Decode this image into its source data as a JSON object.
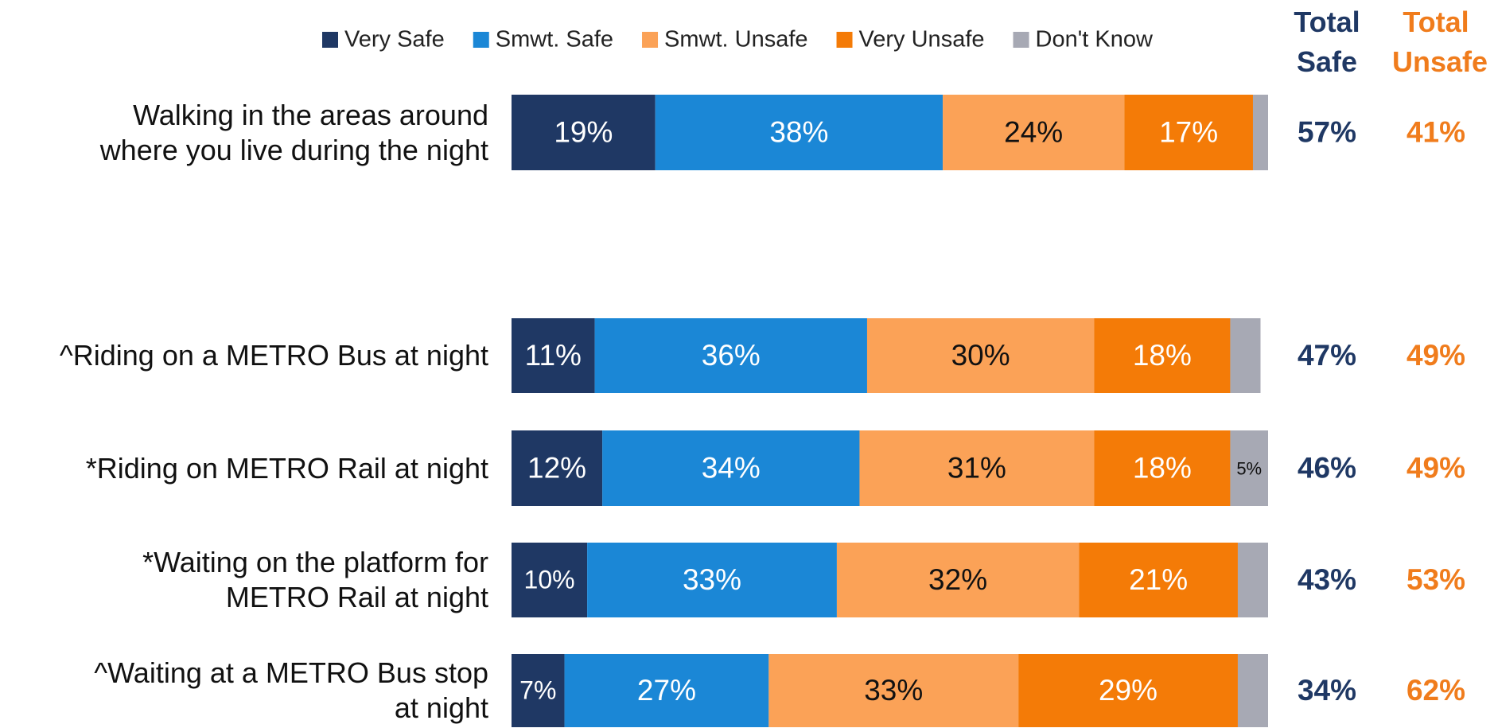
{
  "chart_data": {
    "type": "stacked-bar-horizontal",
    "categories": [
      "Walking in the areas around\nwhere you live during the night",
      "^Riding on a METRO Bus at night",
      "*Riding on METRO Rail at night",
      "*Waiting on the platform for\nMETRO Rail at night",
      "^Waiting at a METRO Bus stop\nat night"
    ],
    "xlim": [
      0,
      100
    ],
    "series": [
      {
        "name": "Very Safe",
        "color": "#1f3864",
        "values": [
          19,
          11,
          12,
          10,
          7
        ],
        "value_labels": [
          "19%",
          "11%",
          "12%",
          "10%",
          "7%"
        ]
      },
      {
        "name": "Smwt. Safe",
        "color": "#1b87d6",
        "values": [
          38,
          36,
          34,
          33,
          27
        ],
        "value_labels": [
          "38%",
          "36%",
          "34%",
          "33%",
          "27%"
        ]
      },
      {
        "name": "Smwt. Unsafe",
        "color": "#fba257",
        "values": [
          24,
          30,
          31,
          32,
          33
        ],
        "value_labels": [
          "24%",
          "30%",
          "31%",
          "32%",
          "33%"
        ]
      },
      {
        "name": "Very Unsafe",
        "color": "#f47b07",
        "values": [
          17,
          18,
          18,
          21,
          29
        ],
        "value_labels": [
          "17%",
          "18%",
          "18%",
          "21%",
          "29%"
        ]
      },
      {
        "name": "Don't Know",
        "color": "#a7a9b4",
        "values": [
          2,
          4,
          5,
          4,
          4
        ],
        "value_labels": [
          null,
          null,
          "5%",
          null,
          null
        ]
      }
    ],
    "totals": [
      {
        "name": "Total Safe",
        "color": "#1f3864",
        "values": [
          57,
          47,
          46,
          43,
          34
        ],
        "value_labels": [
          "57%",
          "47%",
          "46%",
          "43%",
          "34%"
        ]
      },
      {
        "name": "Total Unsafe",
        "color": "#f07c1c",
        "values": [
          41,
          49,
          49,
          53,
          62
        ],
        "value_labels": [
          "41%",
          "49%",
          "49%",
          "53%",
          "62%"
        ]
      }
    ]
  }
}
